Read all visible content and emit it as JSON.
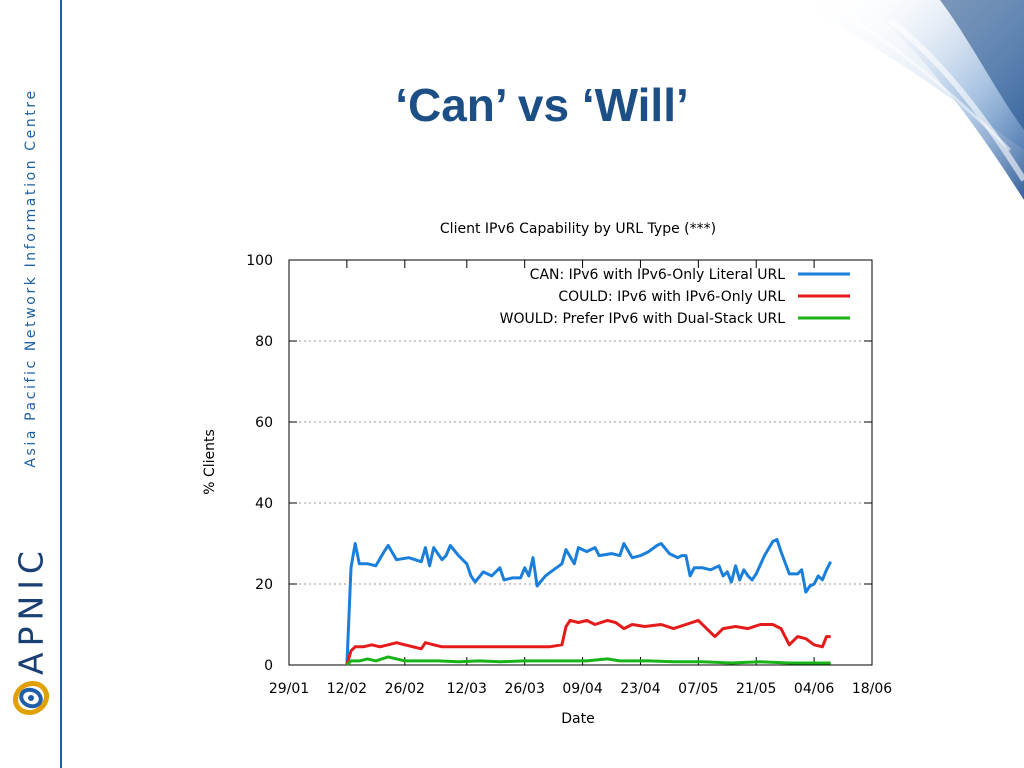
{
  "slide": {
    "title": "‘Can’ vs ‘Will’"
  },
  "sidebar": {
    "org_name": "Asia Pacific Network Information Centre",
    "logo_text": "APNIC"
  },
  "colors": {
    "accent": "#1f5fa8",
    "title": "#1c4f86",
    "can": "#1a7fdb",
    "could": "#e51b1b",
    "would": "#19b319"
  },
  "chart_data": {
    "type": "line",
    "title": "Client IPv6 Capability by URL Type (***)",
    "xlabel": "Date",
    "ylabel": "% Clients",
    "ylim": [
      0,
      100
    ],
    "yticks": [
      0,
      20,
      40,
      60,
      80,
      100
    ],
    "xlim": [
      "2012-01-29",
      "2012-06-18"
    ],
    "xticks": [
      {
        "date": "2012-01-29",
        "label": "29/01"
      },
      {
        "date": "2012-02-12",
        "label": "12/02"
      },
      {
        "date": "2012-02-26",
        "label": "26/02"
      },
      {
        "date": "2012-03-12",
        "label": "12/03"
      },
      {
        "date": "2012-03-26",
        "label": "26/03"
      },
      {
        "date": "2012-04-09",
        "label": "09/04"
      },
      {
        "date": "2012-04-23",
        "label": "23/04"
      },
      {
        "date": "2012-05-07",
        "label": "07/05"
      },
      {
        "date": "2012-05-21",
        "label": "21/05"
      },
      {
        "date": "2012-06-04",
        "label": "04/06"
      },
      {
        "date": "2012-06-18",
        "label": "18/06"
      }
    ],
    "grid": "horizontal dashed",
    "legend_position": "top-right",
    "series": [
      {
        "name": "CAN: IPv6 with IPv6-Only Literal URL",
        "color": "#1a7fdb",
        "points": [
          [
            "2012-02-12",
            0
          ],
          [
            "2012-02-13",
            24
          ],
          [
            "2012-02-14",
            30
          ],
          [
            "2012-02-15",
            25
          ],
          [
            "2012-02-17",
            25
          ],
          [
            "2012-02-19",
            24.5
          ],
          [
            "2012-02-21",
            28
          ],
          [
            "2012-02-22",
            29.5
          ],
          [
            "2012-02-24",
            26
          ],
          [
            "2012-02-27",
            26.5
          ],
          [
            "2012-03-01",
            25.5
          ],
          [
            "2012-03-02",
            29
          ],
          [
            "2012-03-03",
            24.5
          ],
          [
            "2012-03-04",
            29
          ],
          [
            "2012-03-06",
            26
          ],
          [
            "2012-03-07",
            27
          ],
          [
            "2012-03-08",
            29.5
          ],
          [
            "2012-03-10",
            27
          ],
          [
            "2012-03-12",
            25
          ],
          [
            "2012-03-13",
            22
          ],
          [
            "2012-03-14",
            20.5
          ],
          [
            "2012-03-16",
            23
          ],
          [
            "2012-03-18",
            22
          ],
          [
            "2012-03-20",
            24
          ],
          [
            "2012-03-21",
            21
          ],
          [
            "2012-03-23",
            21.5
          ],
          [
            "2012-03-25",
            21.5
          ],
          [
            "2012-03-26",
            24
          ],
          [
            "2012-03-27",
            22
          ],
          [
            "2012-03-28",
            26.5
          ],
          [
            "2012-03-29",
            19.5
          ],
          [
            "2012-03-31",
            22
          ],
          [
            "2012-04-02",
            23.5
          ],
          [
            "2012-04-04",
            25
          ],
          [
            "2012-04-05",
            28.5
          ],
          [
            "2012-04-07",
            25
          ],
          [
            "2012-04-08",
            29
          ],
          [
            "2012-04-10",
            28
          ],
          [
            "2012-04-12",
            29
          ],
          [
            "2012-04-13",
            27
          ],
          [
            "2012-04-16",
            27.5
          ],
          [
            "2012-04-18",
            27
          ],
          [
            "2012-04-19",
            30
          ],
          [
            "2012-04-21",
            26.5
          ],
          [
            "2012-04-23",
            27
          ],
          [
            "2012-04-25",
            28
          ],
          [
            "2012-04-27",
            29.5
          ],
          [
            "2012-04-28",
            30
          ],
          [
            "2012-04-30",
            27.5
          ],
          [
            "2012-05-02",
            26.5
          ],
          [
            "2012-05-03",
            27
          ],
          [
            "2012-05-04",
            27
          ],
          [
            "2012-05-05",
            22
          ],
          [
            "2012-05-06",
            24
          ],
          [
            "2012-05-08",
            24
          ],
          [
            "2012-05-10",
            23.5
          ],
          [
            "2012-05-12",
            24.5
          ],
          [
            "2012-05-13",
            22
          ],
          [
            "2012-05-14",
            23
          ],
          [
            "2012-05-15",
            20.5
          ],
          [
            "2012-05-16",
            24.5
          ],
          [
            "2012-05-17",
            21
          ],
          [
            "2012-05-18",
            23.5
          ],
          [
            "2012-05-19",
            22
          ],
          [
            "2012-05-20",
            21
          ],
          [
            "2012-05-21",
            22.5
          ],
          [
            "2012-05-23",
            27
          ],
          [
            "2012-05-25",
            30.5
          ],
          [
            "2012-05-26",
            31
          ],
          [
            "2012-05-27",
            28
          ],
          [
            "2012-05-29",
            22.5
          ],
          [
            "2012-05-31",
            22.5
          ],
          [
            "2012-06-01",
            23.5
          ],
          [
            "2012-06-02",
            18
          ],
          [
            "2012-06-03",
            19.5
          ],
          [
            "2012-06-04",
            20
          ],
          [
            "2012-06-05",
            22
          ],
          [
            "2012-06-06",
            21
          ],
          [
            "2012-06-07",
            23.5
          ],
          [
            "2012-06-08",
            25.5
          ]
        ]
      },
      {
        "name": "COULD: IPv6 with IPv6-Only URL",
        "color": "#e51b1b",
        "points": [
          [
            "2012-02-12",
            0
          ],
          [
            "2012-02-13",
            3.5
          ],
          [
            "2012-02-14",
            4.5
          ],
          [
            "2012-02-16",
            4.5
          ],
          [
            "2012-02-18",
            5
          ],
          [
            "2012-02-20",
            4.5
          ],
          [
            "2012-02-22",
            5
          ],
          [
            "2012-02-24",
            5.5
          ],
          [
            "2012-02-26",
            5
          ],
          [
            "2012-02-28",
            4.5
          ],
          [
            "2012-03-01",
            4
          ],
          [
            "2012-03-02",
            5.5
          ],
          [
            "2012-03-04",
            5
          ],
          [
            "2012-03-06",
            4.5
          ],
          [
            "2012-03-10",
            4.5
          ],
          [
            "2012-03-16",
            4.5
          ],
          [
            "2012-03-22",
            4.5
          ],
          [
            "2012-03-28",
            4.5
          ],
          [
            "2012-04-01",
            4.5
          ],
          [
            "2012-04-04",
            5
          ],
          [
            "2012-04-05",
            9.5
          ],
          [
            "2012-04-06",
            11
          ],
          [
            "2012-04-08",
            10.5
          ],
          [
            "2012-04-10",
            11
          ],
          [
            "2012-04-12",
            10
          ],
          [
            "2012-04-15",
            11
          ],
          [
            "2012-04-17",
            10.5
          ],
          [
            "2012-04-19",
            9
          ],
          [
            "2012-04-21",
            10
          ],
          [
            "2012-04-24",
            9.5
          ],
          [
            "2012-04-28",
            10
          ],
          [
            "2012-05-01",
            9
          ],
          [
            "2012-05-04",
            10
          ],
          [
            "2012-05-07",
            11
          ],
          [
            "2012-05-10",
            8
          ],
          [
            "2012-05-11",
            7
          ],
          [
            "2012-05-13",
            9
          ],
          [
            "2012-05-16",
            9.5
          ],
          [
            "2012-05-19",
            9
          ],
          [
            "2012-05-22",
            10
          ],
          [
            "2012-05-25",
            10
          ],
          [
            "2012-05-27",
            9
          ],
          [
            "2012-05-29",
            5
          ],
          [
            "2012-05-31",
            7
          ],
          [
            "2012-06-02",
            6.5
          ],
          [
            "2012-06-04",
            5
          ],
          [
            "2012-06-06",
            4.5
          ],
          [
            "2012-06-07",
            7
          ],
          [
            "2012-06-08",
            7
          ]
        ]
      },
      {
        "name": "WOULD: Prefer IPv6 with Dual-Stack URL",
        "color": "#19b319",
        "points": [
          [
            "2012-02-12",
            0
          ],
          [
            "2012-02-13",
            1
          ],
          [
            "2012-02-15",
            1
          ],
          [
            "2012-02-17",
            1.5
          ],
          [
            "2012-02-19",
            1
          ],
          [
            "2012-02-22",
            2
          ],
          [
            "2012-02-24",
            1.5
          ],
          [
            "2012-02-26",
            1
          ],
          [
            "2012-03-01",
            1
          ],
          [
            "2012-03-05",
            1
          ],
          [
            "2012-03-10",
            0.8
          ],
          [
            "2012-03-15",
            1
          ],
          [
            "2012-03-20",
            0.8
          ],
          [
            "2012-03-26",
            1
          ],
          [
            "2012-04-01",
            1
          ],
          [
            "2012-04-05",
            1
          ],
          [
            "2012-04-10",
            1
          ],
          [
            "2012-04-15",
            1.5
          ],
          [
            "2012-04-18",
            1
          ],
          [
            "2012-04-25",
            1
          ],
          [
            "2012-05-01",
            0.8
          ],
          [
            "2012-05-08",
            0.8
          ],
          [
            "2012-05-15",
            0.5
          ],
          [
            "2012-05-22",
            0.8
          ],
          [
            "2012-05-29",
            0.5
          ],
          [
            "2012-06-04",
            0.5
          ],
          [
            "2012-06-08",
            0.5
          ]
        ]
      }
    ]
  }
}
